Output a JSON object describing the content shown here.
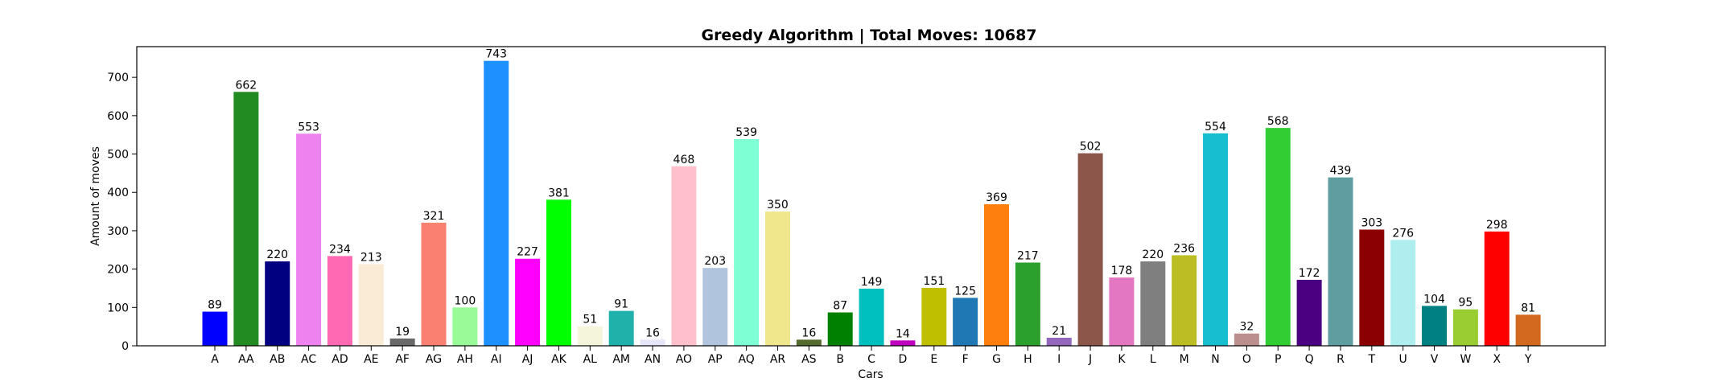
{
  "chart_data": {
    "type": "bar",
    "title": "Greedy Algorithm | Total Moves: 10687",
    "xlabel": "Cars",
    "ylabel": "Amount of moves",
    "ylim": [
      0,
      780
    ],
    "yticks": [
      0,
      100,
      200,
      300,
      400,
      500,
      600,
      700
    ],
    "grid": false,
    "categories": [
      "A",
      "AA",
      "AB",
      "AC",
      "AD",
      "AE",
      "AF",
      "AG",
      "AH",
      "AI",
      "AJ",
      "AK",
      "AL",
      "AM",
      "AN",
      "AO",
      "AP",
      "AQ",
      "AR",
      "AS",
      "B",
      "C",
      "D",
      "E",
      "F",
      "G",
      "H",
      "I",
      "J",
      "K",
      "L",
      "M",
      "N",
      "O",
      "P",
      "Q",
      "R",
      "T",
      "U",
      "V",
      "W",
      "X",
      "Y"
    ],
    "values": [
      89,
      662,
      220,
      553,
      234,
      213,
      19,
      321,
      100,
      743,
      227,
      381,
      51,
      91,
      16,
      468,
      203,
      539,
      350,
      16,
      87,
      149,
      14,
      151,
      125,
      369,
      217,
      21,
      502,
      178,
      220,
      236,
      554,
      32,
      568,
      172,
      439,
      303,
      276,
      104,
      95,
      298,
      81
    ],
    "colors": [
      "#0000ff",
      "#228b22",
      "#000080",
      "#ee82ee",
      "#ff69b4",
      "#faebd7",
      "#696969",
      "#fa8072",
      "#98fb98",
      "#1e90ff",
      "#ff00ff",
      "#00ff00",
      "#f5f5dc",
      "#20b2aa",
      "#e6e6fa",
      "#ffc0cb",
      "#b0c4de",
      "#7fffd4",
      "#f0e68c",
      "#556b2f",
      "#008000",
      "#00bfbf",
      "#bf00bf",
      "#bfbf00",
      "#1f77b4",
      "#ff7f0e",
      "#2ca02c",
      "#9467bd",
      "#8c564b",
      "#e377c2",
      "#7f7f7f",
      "#bcbd22",
      "#17becf",
      "#bc8f8f",
      "#32cd32",
      "#4b0082",
      "#5f9ea0",
      "#8b0000",
      "#afeeee",
      "#008080",
      "#9acd32",
      "#ff0000",
      "#d2691e"
    ]
  }
}
